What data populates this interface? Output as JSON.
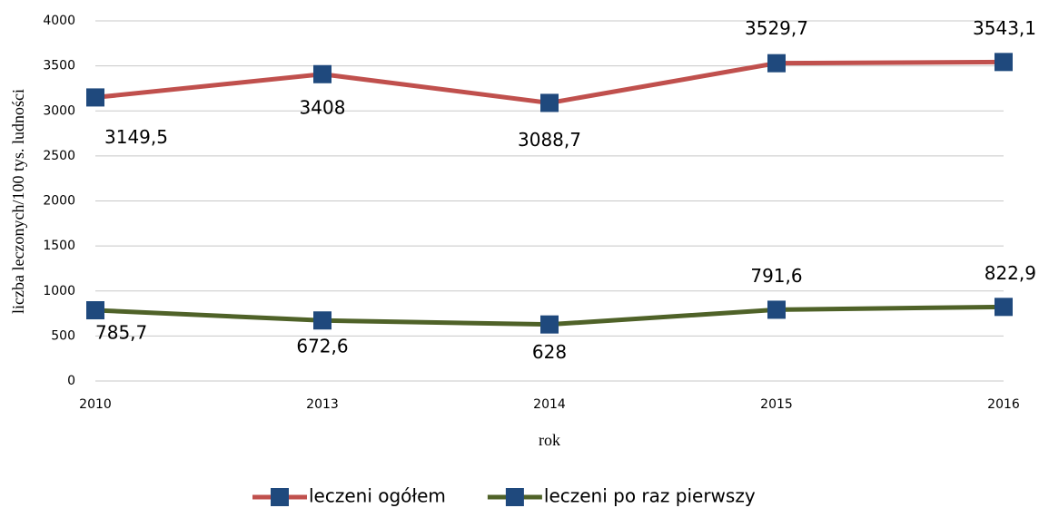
{
  "chart_data": {
    "type": "line",
    "x_label": "rok",
    "y_label": "liczba leczonych/100 tys. ludności",
    "categories": [
      "2010",
      "2013",
      "2014",
      "2015",
      "2016"
    ],
    "series": [
      {
        "name": "leczeni ogółem",
        "color": "#c0504d",
        "marker_color": "#1f497d",
        "values": [
          3149.5,
          3408,
          3088.7,
          3529.7,
          3543.1
        ],
        "value_labels": [
          "3149,5",
          "3408",
          "3088,7",
          "3529,7",
          "3543,1"
        ]
      },
      {
        "name": "leczeni po raz pierwszy",
        "color": "#4f6228",
        "marker_color": "#1f497d",
        "values": [
          785.7,
          672.6,
          628,
          791.6,
          822.9
        ],
        "value_labels": [
          "785,7",
          "672,6",
          "628",
          "791,6",
          "822,9"
        ]
      }
    ],
    "ylim": [
      0,
      4000
    ],
    "yticks": [
      0,
      500,
      1000,
      1500,
      2000,
      2500,
      3000,
      3500,
      4000
    ],
    "grid": true,
    "legend": "bottom"
  }
}
